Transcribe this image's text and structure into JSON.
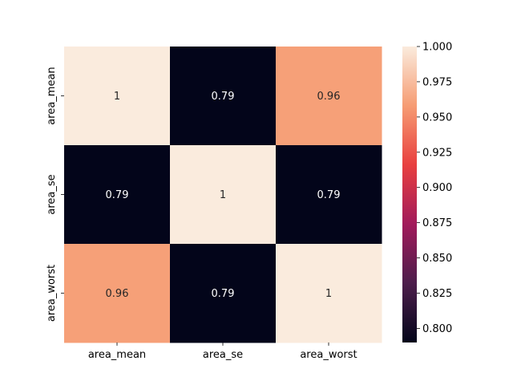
{
  "chart_data": {
    "type": "heatmap",
    "rows": [
      "area_mean",
      "area_se",
      "area_worst"
    ],
    "columns": [
      "area_mean",
      "area_se",
      "area_worst"
    ],
    "values": [
      [
        1.0,
        0.79,
        0.96
      ],
      [
        0.79,
        1.0,
        0.79
      ],
      [
        0.96,
        0.79,
        1.0
      ]
    ],
    "annotations": [
      [
        "1",
        "0.79",
        "0.96"
      ],
      [
        "0.79",
        "1",
        "0.79"
      ],
      [
        "0.96",
        "0.79",
        "1"
      ]
    ],
    "colorbar": {
      "range": [
        0.79,
        1.0
      ],
      "ticks": [
        0.8,
        0.825,
        0.85,
        0.875,
        0.9,
        0.925,
        0.95,
        0.975,
        1.0
      ],
      "tick_labels": [
        "0.800",
        "0.825",
        "0.850",
        "0.875",
        "0.900",
        "0.925",
        "0.950",
        "0.975",
        "1.000"
      ]
    },
    "colormap": "rocket",
    "colormap_stops": [
      "#03051a",
      "#4c1d4b",
      "#a11a5b",
      "#e83f3f",
      "#f69c73",
      "#faebdd"
    ],
    "grid": false,
    "title": "",
    "xlabel": "",
    "ylabel": ""
  }
}
